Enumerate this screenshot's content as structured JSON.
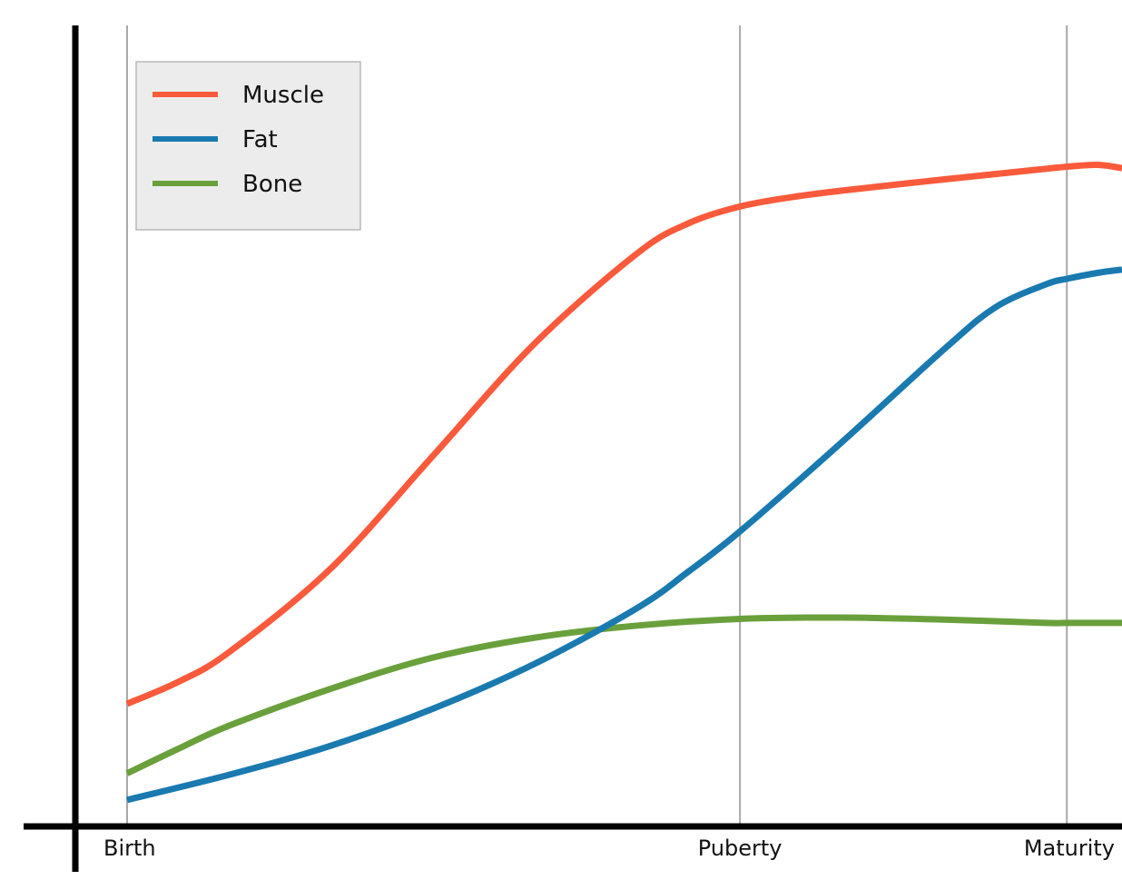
{
  "chart_data": {
    "type": "line",
    "title": "",
    "xlabel": "",
    "ylabel": "",
    "categories": [
      "Birth",
      "Puberty",
      "Maturity"
    ],
    "x_ticks": [
      {
        "label": "Birth",
        "x": 0
      },
      {
        "label": "Puberty",
        "x": 0.6
      },
      {
        "label": "Maturity",
        "x": 0.92
      }
    ],
    "xlim": [
      0,
      0.974
    ],
    "ylim": [
      0,
      100
    ],
    "grid": {
      "vertical": true,
      "horizontal": false
    },
    "legend": {
      "position": "top-left"
    },
    "series": [
      {
        "name": "Muscle",
        "color": "#fa5a3c",
        "points": [
          [
            0,
            18.5
          ],
          [
            0.05,
            21.8
          ],
          [
            0.1,
            26.3
          ],
          [
            0.2,
            39
          ],
          [
            0.3,
            56
          ],
          [
            0.4,
            73
          ],
          [
            0.5,
            86.5
          ],
          [
            0.55,
            91
          ],
          [
            0.6,
            93.5
          ],
          [
            0.65,
            94.9
          ],
          [
            0.7,
            95.9
          ],
          [
            0.8,
            97.6
          ],
          [
            0.9,
            99.2
          ],
          [
            0.92,
            99.5
          ],
          [
            0.95,
            99.8
          ],
          [
            0.974,
            99.3
          ]
        ]
      },
      {
        "name": "Fat",
        "color": "#1a7ab0",
        "points": [
          [
            0,
            4
          ],
          [
            0.1,
            7.8
          ],
          [
            0.2,
            12.2
          ],
          [
            0.3,
            17.8
          ],
          [
            0.4,
            24.6
          ],
          [
            0.5,
            33
          ],
          [
            0.55,
            38.5
          ],
          [
            0.6,
            44.5
          ],
          [
            0.7,
            58
          ],
          [
            0.8,
            72
          ],
          [
            0.85,
            78.3
          ],
          [
            0.9,
            81.8
          ],
          [
            0.92,
            82.6
          ],
          [
            0.95,
            83.5
          ],
          [
            0.974,
            84
          ]
        ]
      },
      {
        "name": "Bone",
        "color": "#6aa03c",
        "points": [
          [
            0,
            8
          ],
          [
            0.05,
            11.7
          ],
          [
            0.1,
            15.2
          ],
          [
            0.2,
            20.8
          ],
          [
            0.3,
            25.5
          ],
          [
            0.4,
            28.5
          ],
          [
            0.5,
            30.3
          ],
          [
            0.6,
            31.3
          ],
          [
            0.7,
            31.5
          ],
          [
            0.8,
            31.2
          ],
          [
            0.9,
            30.7
          ],
          [
            0.92,
            30.7
          ],
          [
            0.974,
            30.7
          ]
        ]
      }
    ]
  }
}
